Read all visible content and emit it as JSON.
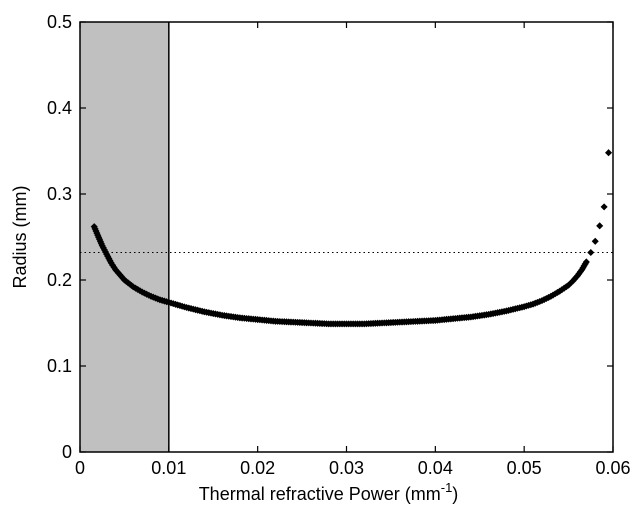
{
  "chart_data": {
    "type": "scatter",
    "title": "",
    "xlabel": "Thermal refractive Power (mm",
    "xlabel_sup": "-1",
    "xlabel_suffix": ")",
    "ylabel": "Radius (mm)",
    "xlim": [
      0,
      0.06
    ],
    "ylim": [
      0,
      0.5
    ],
    "xticks": [
      "0",
      "0.01",
      "0.02",
      "0.03",
      "0.04",
      "0.05",
      "0.06"
    ],
    "yticks": [
      "0",
      "0.1",
      "0.2",
      "0.3",
      "0.4",
      "0.5"
    ],
    "grid": false,
    "shaded_region": {
      "x_start": 0,
      "x_end": 0.01,
      "color": "#c0c0c0"
    },
    "vertical_line": {
      "x": 0.01
    },
    "horizontal_reference": {
      "y": 0.232,
      "style": "dotted"
    },
    "series": [
      {
        "marker_color": "#000000",
        "x": [
          0.0016,
          0.002,
          0.0025,
          0.003,
          0.0035,
          0.004,
          0.005,
          0.006,
          0.007,
          0.008,
          0.009,
          0.01,
          0.012,
          0.014,
          0.016,
          0.018,
          0.02,
          0.022,
          0.024,
          0.026,
          0.028,
          0.03,
          0.032,
          0.034,
          0.036,
          0.038,
          0.04,
          0.042,
          0.044,
          0.046,
          0.048,
          0.05,
          0.051,
          0.052,
          0.053,
          0.054,
          0.055,
          0.0555,
          0.056,
          0.0565,
          0.057,
          0.0575,
          0.058,
          0.0585,
          0.059,
          0.0595
        ],
        "y": [
          0.262,
          0.252,
          0.24,
          0.23,
          0.22,
          0.212,
          0.2,
          0.192,
          0.186,
          0.181,
          0.177,
          0.174,
          0.168,
          0.163,
          0.159,
          0.156,
          0.154,
          0.152,
          0.151,
          0.15,
          0.149,
          0.149,
          0.149,
          0.15,
          0.151,
          0.152,
          0.153,
          0.155,
          0.157,
          0.16,
          0.164,
          0.169,
          0.172,
          0.176,
          0.181,
          0.187,
          0.194,
          0.199,
          0.205,
          0.212,
          0.221,
          0.232,
          0.245,
          0.263,
          0.285,
          0.348
        ]
      }
    ]
  }
}
